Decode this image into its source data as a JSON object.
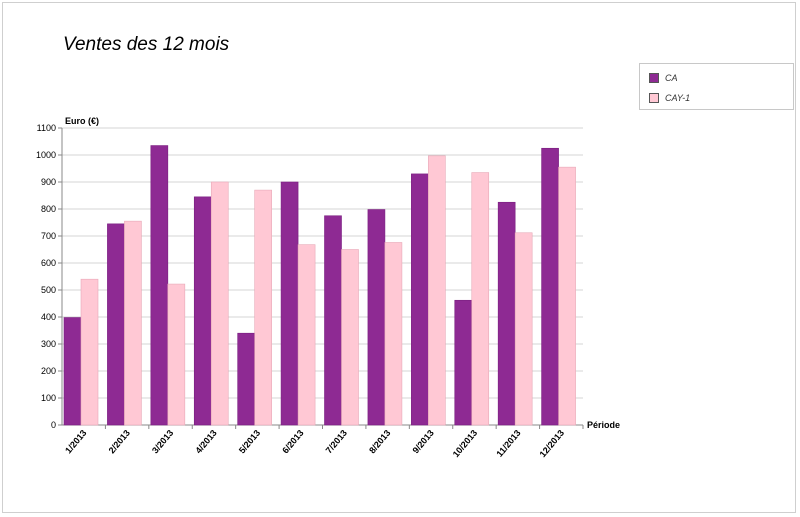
{
  "chart_data": {
    "type": "bar",
    "title": "Ventes des 12 mois",
    "ylabel": "Euro (€)",
    "xlabel": "Période",
    "ylim": [
      0,
      1100
    ],
    "yticks": [
      0,
      100,
      200,
      300,
      400,
      500,
      600,
      700,
      800,
      900,
      1000,
      1100
    ],
    "grid": true,
    "legend_position": "top-right",
    "categories": [
      "1/2013",
      "2/2013",
      "3/2013",
      "4/2013",
      "5/2013",
      "6/2013",
      "7/2013",
      "8/2013",
      "9/2013",
      "10/2013",
      "11/2013",
      "12/2013"
    ],
    "series": [
      {
        "name": "CA",
        "color": "#8e2a93",
        "values": [
          398,
          745,
          1035,
          845,
          340,
          900,
          775,
          798,
          930,
          462,
          825,
          1025
        ]
      },
      {
        "name": "CAY-1",
        "color": "#ffc8d4",
        "values": [
          540,
          755,
          522,
          900,
          870,
          668,
          650,
          676,
          997,
          935,
          712,
          955
        ]
      }
    ]
  }
}
